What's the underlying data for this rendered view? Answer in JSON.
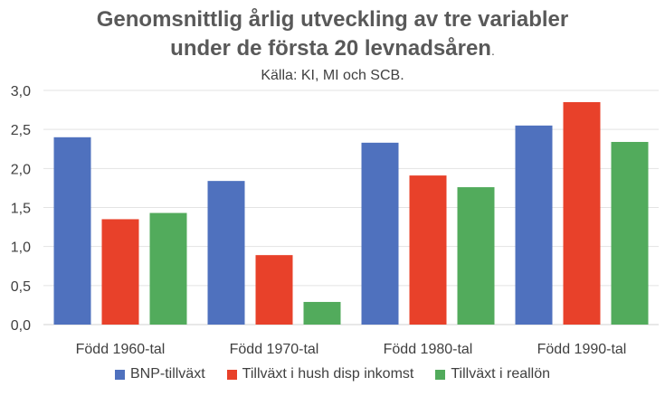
{
  "chart_data": {
    "type": "bar",
    "title": "Genomsnittlig årlig utveckling av tre variabler",
    "title_line2": "under de första 20 levnadsåren",
    "title_suffix": ".",
    "subtitle": "Källa: KI, MI och SCB.",
    "categories": [
      "Född 1960-tal",
      "Född 1970-tal",
      "Född 1980-tal",
      "Född 1990-tal"
    ],
    "series": [
      {
        "name": "BNP-tillväxt",
        "color": "#4F71BE",
        "values": [
          2.4,
          1.84,
          2.33,
          2.55
        ]
      },
      {
        "name": "Tillväxt i hush disp inkomst",
        "color": "#E8412A",
        "values": [
          1.35,
          0.89,
          1.91,
          2.85
        ]
      },
      {
        "name": "Tillväxt i reallön",
        "color": "#52AB5C",
        "values": [
          1.43,
          0.29,
          1.76,
          2.34
        ]
      }
    ],
    "ylim": [
      0,
      3.0
    ],
    "yticks": [
      "0,0",
      "0,5",
      "1,0",
      "1,5",
      "2,0",
      "2,5",
      "3,0"
    ],
    "grid": true,
    "legend": "bottom"
  }
}
